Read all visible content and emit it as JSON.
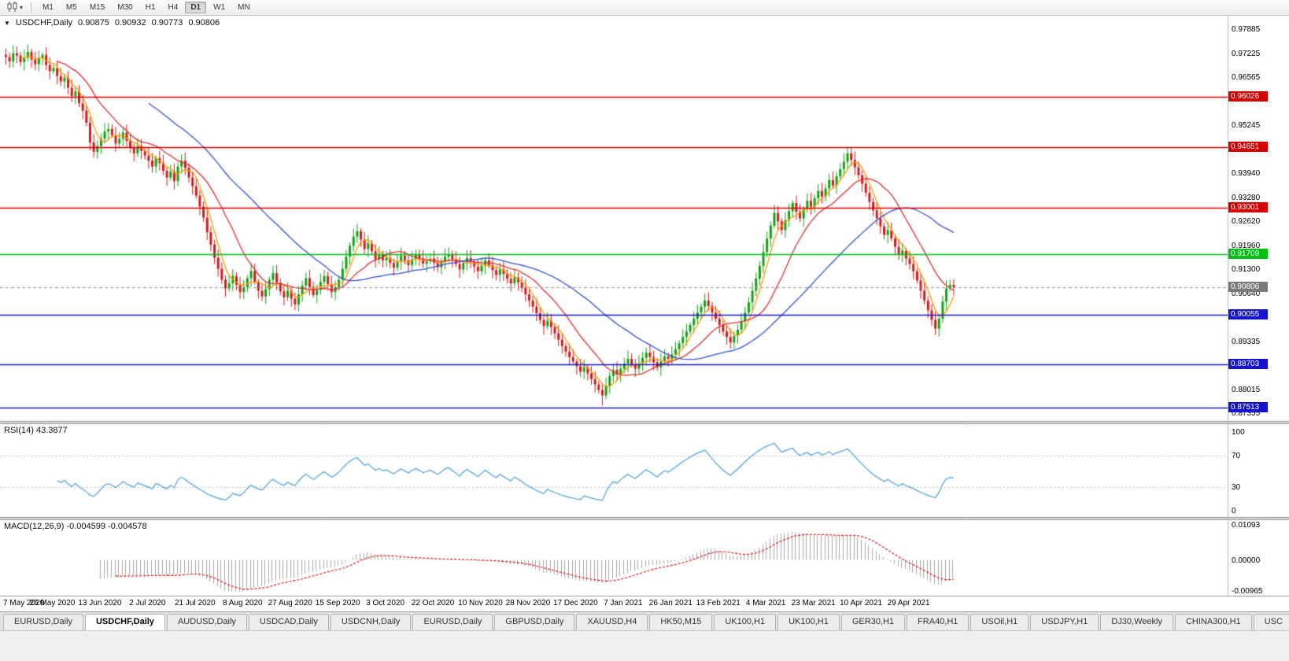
{
  "toolbar": {
    "timeframes": [
      "M1",
      "M5",
      "M15",
      "M30",
      "H1",
      "H4",
      "D1",
      "W1",
      "MN"
    ],
    "active_timeframe": "D1"
  },
  "chart": {
    "symbol_title": "USDCHF,Daily",
    "ohlc": {
      "open": "0.90875",
      "high": "0.90932",
      "low": "0.90773",
      "close": "0.90806"
    },
    "y_axis_ticks": [
      "0.97885",
      "0.97225",
      "0.96565",
      "0.95245",
      "0.93940",
      "0.93280",
      "0.92620",
      "0.91960",
      "0.91300",
      "0.90640",
      "0.89335",
      "0.88015",
      "0.87355"
    ],
    "levels": [
      {
        "label": "0.96026",
        "price": 0.96026,
        "color": "#d40000",
        "kind": "line"
      },
      {
        "label": "0.94651",
        "price": 0.94651,
        "color": "#d40000",
        "kind": "line"
      },
      {
        "label": "0.93001",
        "price": 0.93001,
        "color": "#d40000",
        "kind": "line"
      },
      {
        "label": "0.91709",
        "price": 0.91709,
        "color": "#00c014",
        "kind": "line"
      },
      {
        "label": "0.90806",
        "price": 0.90806,
        "color": "#7a7a7a",
        "kind": "current"
      },
      {
        "label": "0.90055",
        "price": 0.90055,
        "color": "#1414cc",
        "kind": "line"
      },
      {
        "label": "0.88703",
        "price": 0.88703,
        "color": "#1414cc",
        "kind": "line"
      },
      {
        "label": "0.87513",
        "price": 0.87513,
        "color": "#1414cc",
        "kind": "line"
      }
    ]
  },
  "rsi": {
    "label": "RSI(14) 43.3877",
    "ticks": [
      "100",
      "70",
      "30",
      "0"
    ],
    "levels": [
      70,
      30
    ],
    "color": "#4a9ede"
  },
  "macd": {
    "label": "MACD(12,26,9) -0.004599 -0.004578",
    "ticks": [
      {
        "v": 0.01093,
        "label": "0.01093"
      },
      {
        "v": 0.0,
        "label": "0.00000"
      },
      {
        "v": -0.00965,
        "label": "-0.00965"
      }
    ],
    "histogram_color": "#a8a8a8",
    "signal_color": "#e00000"
  },
  "tabs": {
    "active_index": 1,
    "items": [
      "EURUSD,Daily",
      "USDCHF,Daily",
      "AUDUSD,Daily",
      "USDCAD,Daily",
      "USDCNH,Daily",
      "EURUSD,Daily",
      "GBPUSD,Daily",
      "XAUUSD,H4",
      "HK50,M15",
      "UK100,H1",
      "UK100,H1",
      "GER30,H1",
      "FRA40,H1",
      "USOil,H1",
      "USDJPY,H1",
      "DJ30,Weekly",
      "CHINA300,H1",
      "USC"
    ]
  },
  "chart_data": {
    "type": "candlestick",
    "symbol": "USDCHF",
    "period": "Daily",
    "title": "USDCHF,Daily 0.90875 0.90932 0.90773 0.90806",
    "x_labels": [
      "7 May 2020",
      "26 May 2020",
      "13 Jun 2020",
      "2 Jul 2020",
      "21 Jul 2020",
      "8 Aug 2020",
      "27 Aug 2020",
      "15 Sep 2020",
      "3 Oct 2020",
      "22 Oct 2020",
      "10 Nov 2020",
      "28 Nov 2020",
      "17 Dec 2020",
      "7 Jan 2021",
      "26 Jan 2021",
      "13 Feb 2021",
      "4 Mar 2021",
      "23 Mar 2021",
      "10 Apr 2021",
      "29 Apr 2021"
    ],
    "candles_per_label_gap": 13,
    "y_range": [
      0.8715,
      0.9825
    ],
    "closes": [
      0.9712,
      0.97,
      0.9722,
      0.9716,
      0.9698,
      0.971,
      0.9726,
      0.9705,
      0.9692,
      0.9709,
      0.9718,
      0.969,
      0.9673,
      0.9682,
      0.966,
      0.9645,
      0.9655,
      0.9628,
      0.9605,
      0.9618,
      0.9585,
      0.9565,
      0.9532,
      0.9478,
      0.9452,
      0.9468,
      0.9488,
      0.9508,
      0.9515,
      0.9498,
      0.9475,
      0.9488,
      0.9505,
      0.9482,
      0.9465,
      0.9448,
      0.9468,
      0.9455,
      0.9442,
      0.9428,
      0.9412,
      0.9435,
      0.9422,
      0.94,
      0.9382,
      0.9398,
      0.9372,
      0.9412,
      0.9428,
      0.9408,
      0.9382,
      0.9358,
      0.9332,
      0.9302,
      0.9272,
      0.9232,
      0.9198,
      0.9162,
      0.9132,
      0.9102,
      0.9078,
      0.9092,
      0.9112,
      0.9088,
      0.9068,
      0.9082,
      0.9106,
      0.9126,
      0.9096,
      0.9072,
      0.9056,
      0.9076,
      0.9102,
      0.912,
      0.9094,
      0.907,
      0.9054,
      0.9072,
      0.905,
      0.9034,
      0.9062,
      0.9086,
      0.9106,
      0.9082,
      0.906,
      0.9074,
      0.9096,
      0.9112,
      0.909,
      0.9068,
      0.9082,
      0.9102,
      0.9132,
      0.9165,
      0.9195,
      0.922,
      0.9235,
      0.9212,
      0.9186,
      0.9202,
      0.918,
      0.9158,
      0.9172,
      0.9155,
      0.9162,
      0.9148,
      0.9135,
      0.9152,
      0.9168,
      0.9155,
      0.9142,
      0.9158,
      0.917,
      0.916,
      0.9146,
      0.9152,
      0.916,
      0.9148,
      0.9136,
      0.915,
      0.9165,
      0.9172,
      0.9158,
      0.9145,
      0.913,
      0.9148,
      0.9162,
      0.915,
      0.9138,
      0.9125,
      0.914,
      0.9155,
      0.9142,
      0.9128,
      0.9115,
      0.913,
      0.9118,
      0.9105,
      0.9092,
      0.9108,
      0.9095,
      0.908,
      0.9062,
      0.9045,
      0.9028,
      0.901,
      0.8992,
      0.8975,
      0.899,
      0.8972,
      0.8955,
      0.8938,
      0.892,
      0.8905,
      0.889,
      0.8878,
      0.8865,
      0.885,
      0.8862,
      0.8845,
      0.883,
      0.8815,
      0.88,
      0.8785,
      0.8812,
      0.8838,
      0.8855,
      0.8842,
      0.8858,
      0.8872,
      0.8885,
      0.887,
      0.8858,
      0.8872,
      0.8888,
      0.8902,
      0.889,
      0.8876,
      0.8862,
      0.8878,
      0.8892,
      0.8885,
      0.8898,
      0.8912,
      0.8928,
      0.8945,
      0.896,
      0.8978,
      0.8995,
      0.9012,
      0.9028,
      0.9045,
      0.903,
      0.9012,
      0.8995,
      0.8978,
      0.896,
      0.8945,
      0.893,
      0.8948,
      0.8965,
      0.8988,
      0.9012,
      0.904,
      0.9072,
      0.9105,
      0.914,
      0.9178,
      0.9215,
      0.925,
      0.9285,
      0.9262,
      0.9238,
      0.9265,
      0.929,
      0.9312,
      0.9288,
      0.927,
      0.9295,
      0.9318,
      0.9302,
      0.9325,
      0.9345,
      0.933,
      0.9352,
      0.9375,
      0.936,
      0.9385,
      0.9405,
      0.9425,
      0.9448,
      0.943,
      0.941,
      0.9388,
      0.9365,
      0.934,
      0.9315,
      0.9292,
      0.927,
      0.9248,
      0.9225,
      0.9238,
      0.9215,
      0.9192,
      0.917,
      0.9182,
      0.916,
      0.9145,
      0.9125,
      0.91,
      0.9072,
      0.9045,
      0.9018,
      0.8992,
      0.8968,
      0.8995,
      0.9042,
      0.9078,
      0.9088,
      0.9081
    ],
    "annotations": {
      "low_spike": {
        "index": 163,
        "price": 0.8757
      },
      "high_spike": {
        "index": 230,
        "price": 0.9465
      }
    },
    "up_color": "#12a312",
    "down_color": "#d41c1c",
    "ma_overlays": [
      {
        "period": 5,
        "color": "#ff9a00"
      },
      {
        "period": 15,
        "color": "#e03030"
      },
      {
        "period": 40,
        "color": "#3354d6"
      }
    ]
  }
}
